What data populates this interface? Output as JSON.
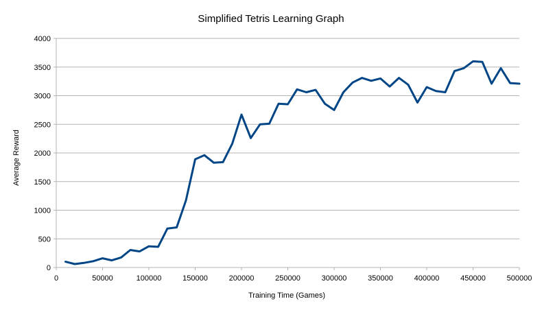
{
  "chart_data": {
    "type": "line",
    "title": "Simplified Tetris Learning Graph",
    "xlabel": "Training Time (Games)",
    "ylabel": "Average Reward",
    "xlim": [
      0,
      500000
    ],
    "ylim": [
      0,
      4000
    ],
    "xticks": [
      0,
      50000,
      100000,
      150000,
      200000,
      250000,
      300000,
      350000,
      400000,
      450000,
      500000
    ],
    "yticks": [
      0,
      500,
      1000,
      1500,
      2000,
      2500,
      3000,
      3500,
      4000
    ],
    "grid": "horizontal",
    "legend": "none",
    "line_color": "#004586",
    "series": [
      {
        "x": [
          10000,
          20000,
          30000,
          40000,
          50000,
          60000,
          70000,
          80000,
          90000,
          100000,
          110000,
          120000,
          130000,
          140000,
          150000,
          160000,
          170000,
          180000,
          190000,
          200000,
          210000,
          220000,
          230000,
          240000,
          250000,
          260000,
          270000,
          280000,
          290000,
          300000,
          310000,
          320000,
          330000,
          340000,
          350000,
          360000,
          370000,
          380000,
          390000,
          400000,
          410000,
          420000,
          430000,
          440000,
          450000,
          460000,
          470000,
          480000,
          490000,
          500000
        ],
        "values": [
          100,
          60,
          80,
          110,
          160,
          125,
          175,
          305,
          280,
          370,
          360,
          680,
          700,
          1170,
          1890,
          1960,
          1830,
          1840,
          2160,
          2670,
          2260,
          2500,
          2510,
          2860,
          2850,
          3110,
          3060,
          3100,
          2860,
          2750,
          3060,
          3230,
          3310,
          3260,
          3300,
          3160,
          3310,
          3190,
          2880,
          3150,
          3080,
          3060,
          3430,
          3480,
          3600,
          3590,
          3210,
          3480,
          3220,
          3210
        ]
      }
    ]
  }
}
